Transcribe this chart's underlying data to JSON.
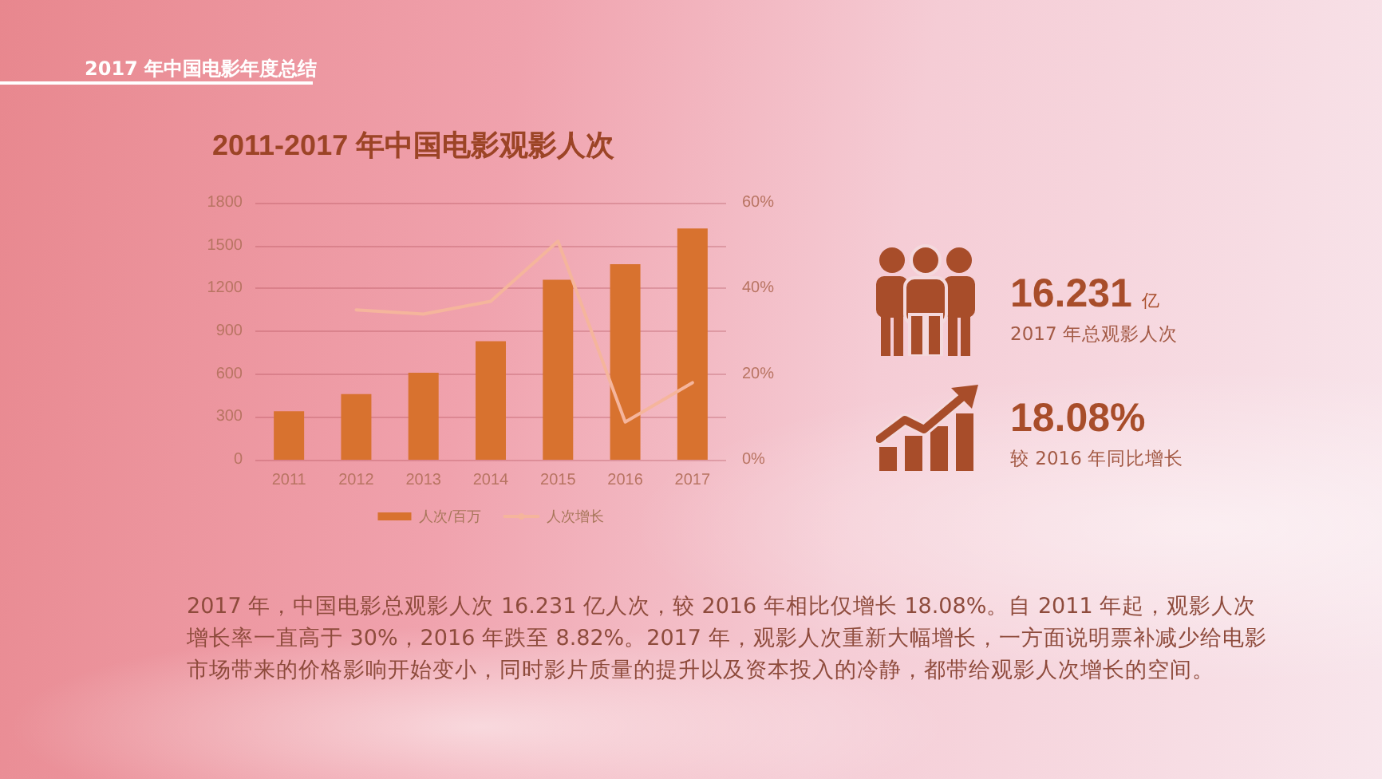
{
  "chart_data": {
    "type": "bar",
    "title": "2011-2017 年中国电影观影人次",
    "categories": [
      "2011",
      "2012",
      "2013",
      "2014",
      "2015",
      "2016",
      "2017"
    ],
    "series": [
      {
        "name": "人次/百万",
        "color": "#d8722f",
        "values": [
          340,
          460,
          610,
          830,
          1260,
          1370,
          1620
        ]
      },
      {
        "name": "人次增长",
        "type": "line",
        "axis": "y2",
        "color": "#f5b59c",
        "values": [
          null,
          35,
          34,
          37,
          51,
          8.8,
          18
        ]
      }
    ],
    "ylim": [
      0,
      1800
    ],
    "yticks": [
      0,
      300,
      600,
      900,
      1200,
      1500,
      1800
    ],
    "y2lim": [
      0,
      60
    ],
    "y2ticks": [
      {
        "value": 0,
        "label": "0%"
      },
      {
        "value": 20,
        "label": "20%"
      },
      {
        "value": 40,
        "label": "40%"
      },
      {
        "value": 60,
        "label": "60%"
      }
    ],
    "grid": "y",
    "legend": "bottom",
    "marker": "none",
    "line_style": "solid",
    "annotations": [
      "2017 年中国电影年度总结",
      "16.231",
      "亿",
      "2017 年总观影人次",
      "18.08%",
      "较 2016 年同比增长",
      "2017 年，中国电影总观影人次 16.231 亿人次，较 2016 年相比仅增长 18.08%。自 2011 年起，观影人次增长率一直高于 30%，2016 年跌至 8.82%。2017 年，观影人次重新大幅增长，一方面说明票补减少给电影市场带来的价格影响开始变小，同时影片质量的提升以及资本投入的冷静，都带给观影人次增长的空间。"
    ]
  }
}
